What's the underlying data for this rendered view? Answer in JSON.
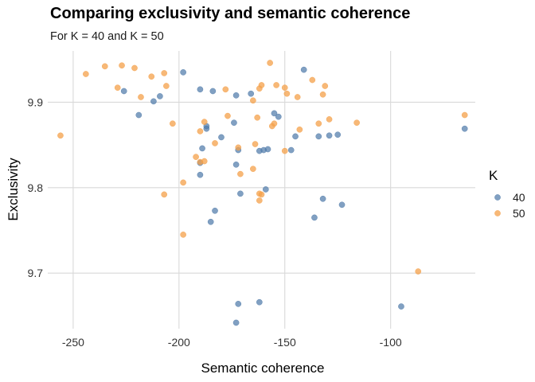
{
  "chart_data": {
    "type": "scatter",
    "title": "Comparing exclusivity and semantic coherence",
    "subtitle": "For K = 40 and K = 50",
    "xlabel": "Semantic coherence",
    "ylabel": "Exclusivity",
    "xlim": [
      -262,
      -60
    ],
    "ylim": [
      9.635,
      9.96
    ],
    "xticks": [
      -250,
      -200,
      -150,
      -100
    ],
    "yticks": [
      9.7,
      9.8,
      9.9
    ],
    "xtick_labels": [
      "-250",
      "-200",
      "-150",
      "-100"
    ],
    "ytick_labels": [
      "9.7",
      "9.8",
      "9.9"
    ],
    "grid": true,
    "legend": {
      "title": "K",
      "placement": "right"
    },
    "series": [
      {
        "name": "40",
        "color": "#4c78a8",
        "points": [
          [
            -226,
            9.913
          ],
          [
            -219,
            9.885
          ],
          [
            -212,
            9.901
          ],
          [
            -209,
            9.907
          ],
          [
            -198,
            9.935
          ],
          [
            -190,
            9.915
          ],
          [
            -184,
            9.913
          ],
          [
            -173,
            9.908
          ],
          [
            -166,
            9.91
          ],
          [
            -155,
            9.887
          ],
          [
            -153,
            9.883
          ],
          [
            -141,
            9.938
          ],
          [
            -189,
            9.846
          ],
          [
            -187,
            9.872
          ],
          [
            -187,
            9.869
          ],
          [
            -180,
            9.859
          ],
          [
            -174,
            9.876
          ],
          [
            -172,
            9.844
          ],
          [
            -162,
            9.843
          ],
          [
            -160,
            9.844
          ],
          [
            -158,
            9.845
          ],
          [
            -147,
            9.844
          ],
          [
            -145,
            9.86
          ],
          [
            -134,
            9.86
          ],
          [
            -129,
            9.861
          ],
          [
            -125,
            9.862
          ],
          [
            -65,
            9.869
          ],
          [
            -190,
            9.829
          ],
          [
            -190,
            9.815
          ],
          [
            -173,
            9.827
          ],
          [
            -171,
            9.793
          ],
          [
            -159,
            9.798
          ],
          [
            -183,
            9.773
          ],
          [
            -185,
            9.76
          ],
          [
            -136,
            9.765
          ],
          [
            -132,
            9.787
          ],
          [
            -123,
            9.78
          ],
          [
            -172,
            9.664
          ],
          [
            -162,
            9.666
          ],
          [
            -173,
            9.642
          ],
          [
            -95,
            9.661
          ]
        ]
      },
      {
        "name": "50",
        "color": "#f4a04a",
        "points": [
          [
            -256,
            9.861
          ],
          [
            -244,
            9.933
          ],
          [
            -235,
            9.942
          ],
          [
            -229,
            9.917
          ],
          [
            -227,
            9.943
          ],
          [
            -221,
            9.94
          ],
          [
            -218,
            9.906
          ],
          [
            -213,
            9.93
          ],
          [
            -207,
            9.934
          ],
          [
            -206,
            9.919
          ],
          [
            -203,
            9.875
          ],
          [
            -190,
            9.866
          ],
          [
            -188,
            9.831
          ],
          [
            -178,
            9.915
          ],
          [
            -177,
            9.884
          ],
          [
            -172,
            9.847
          ],
          [
            -171,
            9.816
          ],
          [
            -165,
            9.902
          ],
          [
            -163,
            9.882
          ],
          [
            -162,
            9.916
          ],
          [
            -161,
            9.92
          ],
          [
            -157,
            9.946
          ],
          [
            -156,
            9.872
          ],
          [
            -155,
            9.875
          ],
          [
            -154,
            9.92
          ],
          [
            -150,
            9.917
          ],
          [
            -149,
            9.91
          ],
          [
            -144,
            9.906
          ],
          [
            -143,
            9.868
          ],
          [
            -137,
            9.926
          ],
          [
            -134,
            9.875
          ],
          [
            -132,
            9.909
          ],
          [
            -131,
            9.919
          ],
          [
            -129,
            9.88
          ],
          [
            -116,
            9.876
          ],
          [
            -65,
            9.885
          ],
          [
            -164,
            9.851
          ],
          [
            -161,
            9.792
          ],
          [
            -162,
            9.793
          ],
          [
            -165,
            9.822
          ],
          [
            -183,
            9.852
          ],
          [
            -190,
            9.83
          ],
          [
            -188,
            9.877
          ],
          [
            -207,
            9.792
          ],
          [
            -198,
            9.806
          ],
          [
            -192,
            9.836
          ],
          [
            -198,
            9.745
          ],
          [
            -150,
            9.843
          ],
          [
            -162,
            9.785
          ],
          [
            -87,
            9.702
          ]
        ]
      }
    ]
  }
}
